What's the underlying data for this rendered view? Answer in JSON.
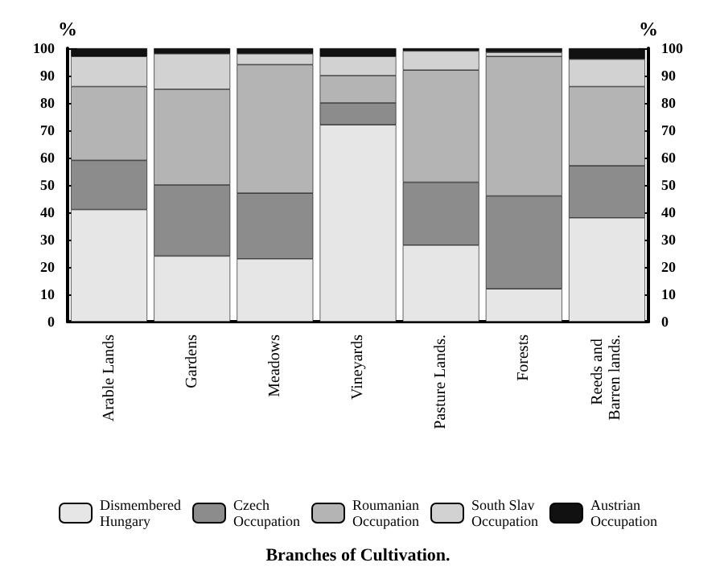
{
  "chart_data": {
    "type": "bar",
    "title": "Branches of Cultivation.",
    "ylabel": "%",
    "y2label": "%",
    "categories": [
      "Arable Lands",
      "Gardens",
      "Meadows",
      "Vineyards",
      "Pasture Lands.",
      "Forests",
      "Reeds and Barren lands."
    ],
    "stacked": true,
    "series": [
      {
        "name": "Dismembered Hungary",
        "color": "#e6e6e6",
        "values": [
          41,
          24,
          23,
          72,
          28,
          12,
          38
        ]
      },
      {
        "name": "Czech Occupation",
        "color": "#8c8c8c",
        "values": [
          18,
          26,
          24,
          8,
          23,
          34,
          19
        ]
      },
      {
        "name": "Roumanian Occupation",
        "color": "#b4b4b4",
        "values": [
          27,
          35,
          47,
          10,
          41,
          51,
          29
        ]
      },
      {
        "name": "South Slav Occupation",
        "color": "#d2d2d2",
        "values": [
          11,
          13,
          4,
          7,
          7,
          1.5,
          10
        ]
      },
      {
        "name": "Austrian Occupation",
        "color": "#111111",
        "values": [
          3,
          2,
          2,
          3,
          1,
          1.5,
          4
        ]
      }
    ],
    "ylim": [
      0,
      100
    ],
    "yticks": [
      0,
      10,
      20,
      30,
      40,
      50,
      60,
      70,
      80,
      90,
      100
    ],
    "y2lim": [
      0,
      100
    ],
    "y2ticks": [
      0,
      10,
      20,
      30,
      40,
      50,
      60,
      70,
      80,
      90,
      100
    ],
    "grid": false,
    "legend": "bottom"
  }
}
